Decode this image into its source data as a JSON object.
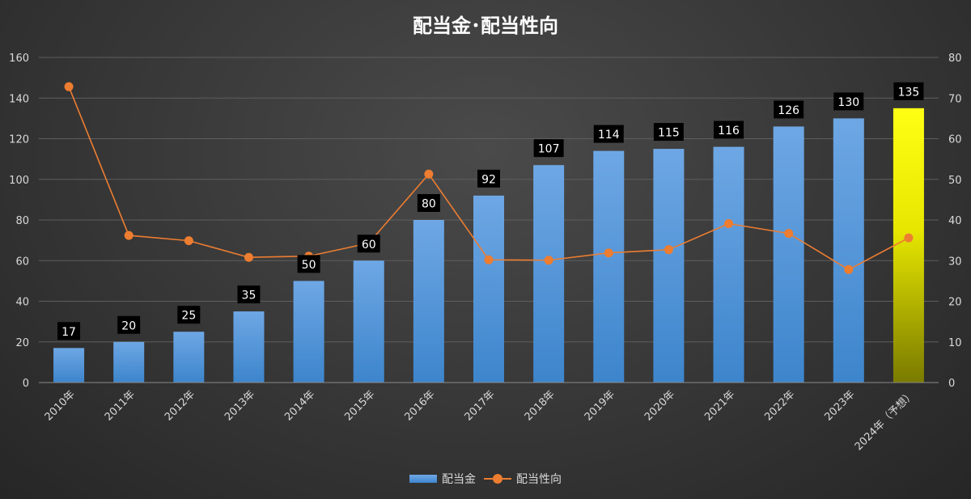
{
  "chart_data": {
    "type": "bar",
    "title": "配当金･配当性向",
    "categories": [
      "2010年",
      "2011年",
      "2012年",
      "2013年",
      "2014年",
      "2015年",
      "2016年",
      "2017年",
      "2018年",
      "2019年",
      "2020年",
      "2021年",
      "2022年",
      "2023年",
      "2024年（予想）"
    ],
    "series": [
      {
        "name": "配当金",
        "type": "bar",
        "axis": "left",
        "values": [
          17,
          20,
          25,
          35,
          50,
          60,
          80,
          92,
          107,
          114,
          115,
          116,
          126,
          130,
          135
        ],
        "color": "#5b9bd5",
        "highlight_index": 14,
        "highlight_color": "#ffff00"
      },
      {
        "name": "配当性向",
        "type": "line",
        "axis": "right",
        "values": [
          72.8,
          36.2,
          34.9,
          30.8,
          31.1,
          34.3,
          51.3,
          30.2,
          30.1,
          31.9,
          32.7,
          39.1,
          36.7,
          27.8,
          35.6
        ],
        "color": "#ed7d31"
      }
    ],
    "y_left": {
      "min": 0,
      "max": 160,
      "ticks": [
        0,
        20,
        40,
        60,
        80,
        100,
        120,
        140,
        160
      ]
    },
    "y_right": {
      "min": 0,
      "max": 80,
      "ticks": [
        0,
        10,
        20,
        30,
        40,
        50,
        60,
        70,
        80
      ]
    },
    "data_labels": "bar-values",
    "grid": true,
    "legend_position": "bottom"
  }
}
